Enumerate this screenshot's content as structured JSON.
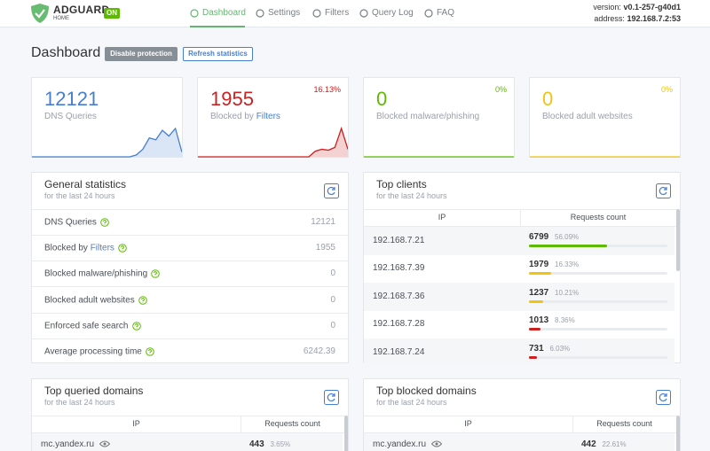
{
  "header": {
    "logo": "ADGUARD",
    "logo_sub": "HOME",
    "status": "ON",
    "nav": [
      "Dashboard",
      "Settings",
      "Filters",
      "Query Log",
      "FAQ"
    ],
    "version_label": "version:",
    "version": "v0.1-257-g40d1",
    "address_label": "address:",
    "address": "192.168.7.2:53"
  },
  "page": {
    "title": "Dashboard",
    "buttons": [
      "Disable protection",
      "Refresh statistics"
    ]
  },
  "stats": [
    {
      "value": "12121",
      "label": "DNS Queries",
      "color": "#467fcf",
      "sparkline": [
        0,
        0,
        0,
        0,
        0,
        0,
        0,
        0,
        0,
        0,
        0,
        0,
        0,
        0,
        0,
        0,
        2,
        8,
        20,
        18,
        28,
        22,
        30,
        5
      ]
    },
    {
      "value": "1955",
      "label": "Blocked by",
      "link": "Filters",
      "percent": "16.13%",
      "color": "#cd201f",
      "sparkline": [
        0,
        0,
        0,
        0,
        0,
        0,
        0,
        0,
        0,
        0,
        0,
        0,
        0,
        0,
        0,
        0,
        0,
        0,
        6,
        8,
        7,
        10,
        30,
        8
      ]
    },
    {
      "value": "0",
      "label": "Blocked malware/phishing",
      "percent": "0%",
      "color": "#5eba00",
      "sparkline": [
        0,
        0,
        0,
        0,
        0,
        0,
        0,
        0,
        0,
        0,
        0,
        0,
        0,
        0,
        0,
        0,
        0,
        0,
        0,
        0,
        0,
        0,
        0,
        0
      ]
    },
    {
      "value": "0",
      "label": "Blocked adult websites",
      "percent": "0%",
      "color": "#f1c40f",
      "sparkline": [
        0,
        0,
        0,
        0,
        0,
        0,
        0,
        0,
        0,
        0,
        0,
        0,
        0,
        0,
        0,
        0,
        0,
        0,
        0,
        0,
        0,
        0,
        0,
        0
      ]
    }
  ],
  "general": {
    "title": "General statistics",
    "subtitle": "for the last 24 hours",
    "rows": [
      {
        "label": "DNS Queries",
        "value": "12121"
      },
      {
        "label": "Blocked by",
        "link": "Filters",
        "value": "1955"
      },
      {
        "label": "Blocked malware/phishing",
        "value": "0"
      },
      {
        "label": "Blocked adult websites",
        "value": "0"
      },
      {
        "label": "Enforced safe search",
        "value": "0"
      },
      {
        "label": "Average processing time",
        "value": "6242.39"
      }
    ]
  },
  "top_clients": {
    "title": "Top clients",
    "subtitle": "for the last 24 hours",
    "columns": [
      "IP",
      "Requests count"
    ],
    "rows": [
      {
        "name": "192.168.7.21",
        "count": "6799",
        "percent": "56.09%",
        "color": "#5eba00"
      },
      {
        "name": "192.168.7.39",
        "count": "1979",
        "percent": "16.33%",
        "color": "#f1c40f"
      },
      {
        "name": "192.168.7.36",
        "count": "1237",
        "percent": "10.21%",
        "color": "#f1c40f"
      },
      {
        "name": "192.168.7.28",
        "count": "1013",
        "percent": "8.36%",
        "color": "#cd201f"
      },
      {
        "name": "192.168.7.24",
        "count": "731",
        "percent": "6.03%",
        "color": "#cd201f"
      }
    ]
  },
  "top_queried": {
    "title": "Top queried domains",
    "subtitle": "for the last 24 hours",
    "columns": [
      "IP",
      "Requests count"
    ],
    "rows": [
      {
        "name": "mc.yandex.ru",
        "count": "443",
        "percent": "3.65%"
      }
    ]
  },
  "top_blocked": {
    "title": "Top blocked domains",
    "subtitle": "for the last 24 hours",
    "columns": [
      "IP",
      "Requests count"
    ],
    "rows": [
      {
        "name": "mc.yandex.ru",
        "count": "442",
        "percent": "22.61%"
      }
    ]
  }
}
